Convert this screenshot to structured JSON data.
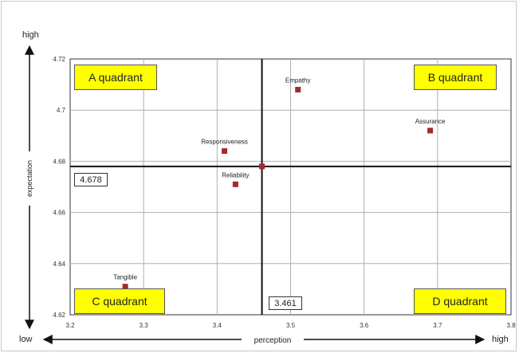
{
  "chart_data": {
    "type": "scatter",
    "xlabel": "perception",
    "ylabel": "expectation",
    "xlim": [
      3.2,
      3.8
    ],
    "ylim": [
      4.62,
      4.72
    ],
    "x_ticks": [
      "3.2",
      "3.3",
      "3.4",
      "3.5",
      "3.6",
      "3.7",
      "3.8"
    ],
    "y_ticks": [
      "4.62",
      "4.64",
      "4.66",
      "4.68",
      "4.7",
      "4.72"
    ],
    "grid": true,
    "points": [
      {
        "label": "Empathy",
        "x": 3.51,
        "y": 4.708
      },
      {
        "label": "Assurance",
        "x": 3.69,
        "y": 4.692
      },
      {
        "label": "Responsiveness",
        "x": 3.41,
        "y": 4.684
      },
      {
        "label": "Reliability",
        "x": 3.425,
        "y": 4.671
      },
      {
        "label": "Tangible",
        "x": 3.275,
        "y": 4.631
      },
      {
        "label": "",
        "x": 3.461,
        "y": 4.678
      }
    ],
    "reference_lines": {
      "x": 3.461,
      "y": 4.678
    },
    "reference_labels": {
      "x": "3.461",
      "y": "4.678"
    },
    "quadrants": {
      "A": "A quadrant",
      "B": "B  quadrant",
      "C": "C quadrant",
      "D": "D  quadrant"
    },
    "axis_ends": {
      "y_high": "high",
      "x_low": "low",
      "x_high": "high"
    },
    "marker_color": "#a52a2a",
    "quadrant_color": "#ffff00"
  }
}
